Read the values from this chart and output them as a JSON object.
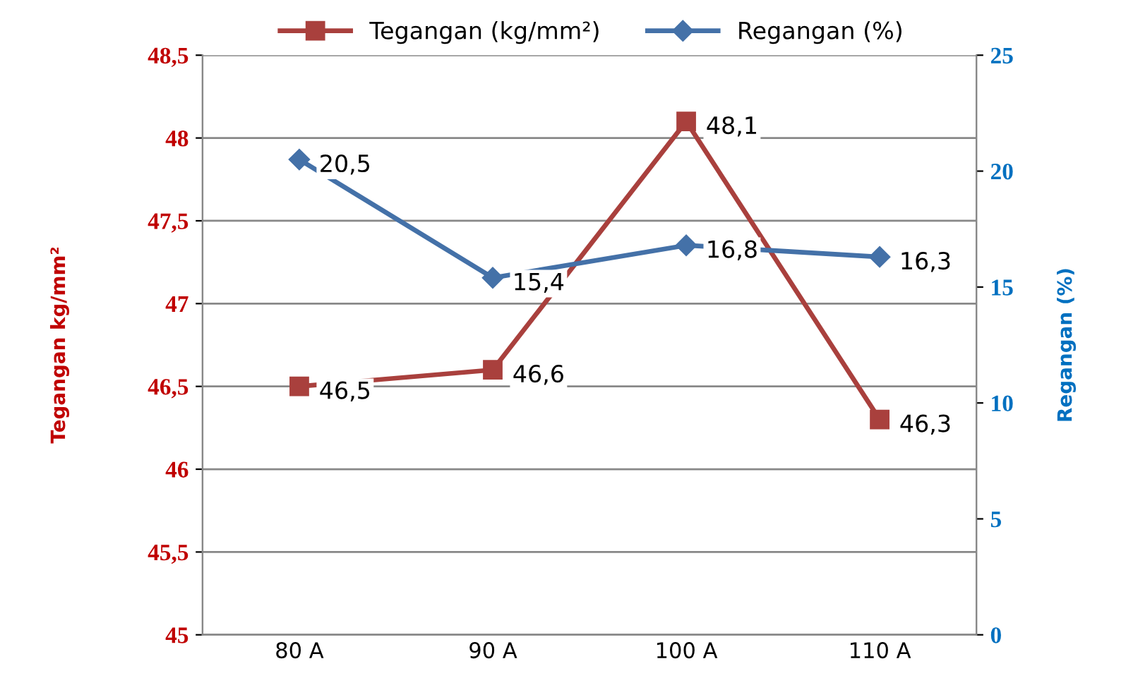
{
  "chart_data": {
    "type": "line",
    "categories": [
      "80 A",
      "90 A",
      "100 A",
      "110 A"
    ],
    "ylabel": "Tegangan kg/mm²",
    "y2label": "Regangan (%)",
    "series": [
      {
        "name": "Tegangan (kg/mm²)",
        "color": "#a9403d",
        "marker": "square",
        "values": [
          46.5,
          46.6,
          48.1,
          46.3
        ],
        "value_labels": [
          "46,5",
          "46,6",
          "48,1",
          "46,3"
        ]
      },
      {
        "name": "Regangan (%)",
        "color": "#4471a8",
        "marker": "diamond",
        "axis": "y2",
        "values": [
          20.5,
          15.4,
          16.8,
          16.3
        ],
        "value_labels": [
          "20,5",
          "15,4",
          "16,8",
          "16,3"
        ]
      }
    ],
    "ylim": [
      45,
      48.5
    ],
    "yticks": [
      45,
      {
        "value": 45.5,
        "label": "45,5"
      },
      46,
      {
        "value": 46.5,
        "label": "46,5"
      },
      47,
      {
        "value": 47.5,
        "label": "47,5"
      },
      48,
      {
        "value": 48.5,
        "label": "48,5"
      }
    ],
    "y2lim": [
      0,
      25
    ],
    "y2ticks": [
      0,
      5,
      10,
      15,
      20,
      25
    ],
    "grid": "y",
    "legend": "top",
    "line_style": "solid"
  }
}
